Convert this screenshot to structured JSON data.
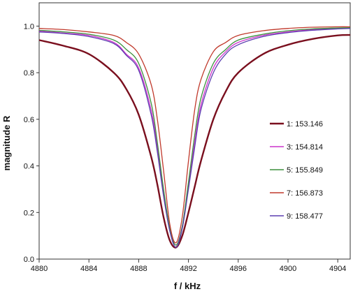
{
  "chart_data": {
    "type": "line",
    "title": "",
    "xlabel": "f / kHz",
    "ylabel": "magnitude R",
    "xlim": [
      4880,
      4905
    ],
    "ylim": [
      0,
      1.1
    ],
    "xticks": [
      4880,
      4884,
      4888,
      4892,
      4896,
      4900,
      4904
    ],
    "yticks": [
      0.0,
      0.2,
      0.4,
      0.6,
      0.8,
      1.0
    ],
    "xtick_labels": [
      "4880",
      "4884",
      "4888",
      "4892",
      "4896",
      "4900",
      "4904"
    ],
    "ytick_labels": [
      "0.0",
      "0.2",
      "0.4",
      "0.6",
      "0.8",
      "1.0"
    ],
    "grid": false,
    "legend_position": "right",
    "series": [
      {
        "name": "1: 153.146",
        "color": "#7a0f1e",
        "x": [
          4880,
          4882,
          4884,
          4886,
          4887,
          4888,
          4889,
          4889.5,
          4890,
          4890.5,
          4891,
          4891.5,
          4892,
          4892.5,
          4893,
          4894,
          4895,
          4896,
          4898,
          4900,
          4902,
          4904,
          4905
        ],
        "y": [
          0.94,
          0.915,
          0.88,
          0.8,
          0.73,
          0.62,
          0.44,
          0.32,
          0.18,
          0.08,
          0.05,
          0.1,
          0.2,
          0.31,
          0.42,
          0.6,
          0.72,
          0.8,
          0.88,
          0.92,
          0.945,
          0.96,
          0.962
        ]
      },
      {
        "name": "3: 154.814",
        "color": "#cc33cc",
        "x": [
          4880,
          4882,
          4884,
          4886,
          4887,
          4888,
          4889,
          4889.5,
          4890,
          4890.5,
          4891,
          4891.5,
          4892,
          4892.5,
          4893,
          4894,
          4895,
          4896,
          4898,
          4900,
          4902,
          4904,
          4905
        ],
        "y": [
          0.978,
          0.97,
          0.96,
          0.93,
          0.88,
          0.82,
          0.64,
          0.48,
          0.29,
          0.13,
          0.06,
          0.14,
          0.31,
          0.5,
          0.66,
          0.82,
          0.89,
          0.93,
          0.96,
          0.975,
          0.985,
          0.99,
          0.99
        ]
      },
      {
        "name": "5: 155.849",
        "color": "#3c8f3c",
        "x": [
          4880,
          4882,
          4884,
          4886,
          4887,
          4888,
          4889,
          4889.5,
          4890,
          4890.5,
          4891,
          4891.5,
          4892,
          4892.5,
          4893,
          4894,
          4895,
          4896,
          4898,
          4900,
          4902,
          4904,
          4905
        ],
        "y": [
          0.982,
          0.975,
          0.965,
          0.94,
          0.9,
          0.84,
          0.67,
          0.5,
          0.3,
          0.13,
          0.06,
          0.14,
          0.33,
          0.53,
          0.69,
          0.84,
          0.9,
          0.94,
          0.965,
          0.98,
          0.988,
          0.992,
          0.993
        ]
      },
      {
        "name": "7: 156.873",
        "color": "#c0392b",
        "x": [
          4880,
          4882,
          4884,
          4886,
          4887,
          4888,
          4889,
          4889.5,
          4890,
          4890.5,
          4891,
          4891.5,
          4892,
          4892.5,
          4893,
          4894,
          4895,
          4896,
          4898,
          4900,
          4902,
          4904,
          4905
        ],
        "y": [
          0.99,
          0.985,
          0.975,
          0.96,
          0.93,
          0.88,
          0.75,
          0.6,
          0.38,
          0.15,
          0.07,
          0.18,
          0.42,
          0.64,
          0.77,
          0.89,
          0.93,
          0.96,
          0.98,
          0.99,
          0.995,
          0.997,
          0.997
        ]
      },
      {
        "name": "9: 158.477",
        "color": "#5b3fb0",
        "x": [
          4880,
          4882,
          4884,
          4886,
          4887,
          4888,
          4889,
          4889.5,
          4890,
          4890.5,
          4891,
          4891.5,
          4892,
          4892.5,
          4893,
          4894,
          4895,
          4896,
          4898,
          4900,
          4902,
          4904,
          4905
        ],
        "y": [
          0.975,
          0.968,
          0.955,
          0.925,
          0.875,
          0.81,
          0.62,
          0.46,
          0.27,
          0.12,
          0.05,
          0.13,
          0.3,
          0.48,
          0.64,
          0.8,
          0.88,
          0.92,
          0.955,
          0.972,
          0.982,
          0.988,
          0.99
        ]
      }
    ]
  }
}
